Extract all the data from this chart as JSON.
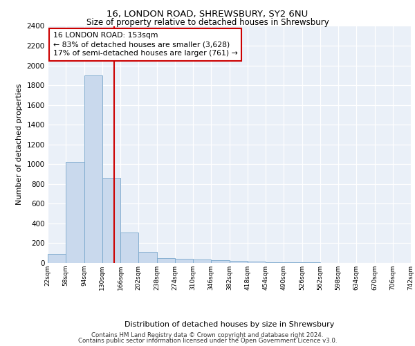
{
  "title1": "16, LONDON ROAD, SHREWSBURY, SY2 6NU",
  "title2": "Size of property relative to detached houses in Shrewsbury",
  "xlabel": "Distribution of detached houses by size in Shrewsbury",
  "ylabel": "Number of detached properties",
  "bin_labels": [
    "22sqm",
    "58sqm",
    "94sqm",
    "130sqm",
    "166sqm",
    "202sqm",
    "238sqm",
    "274sqm",
    "310sqm",
    "346sqm",
    "382sqm",
    "418sqm",
    "454sqm",
    "490sqm",
    "526sqm",
    "562sqm",
    "598sqm",
    "634sqm",
    "670sqm",
    "706sqm",
    "742sqm"
  ],
  "bar_values": [
    90,
    1020,
    1900,
    860,
    310,
    115,
    50,
    45,
    35,
    25,
    20,
    15,
    10,
    8,
    5,
    3,
    2,
    1,
    1,
    0
  ],
  "bar_color": "#c9d9ed",
  "bar_edge_color": "#7aa8cc",
  "ylim": [
    0,
    2400
  ],
  "yticks": [
    0,
    200,
    400,
    600,
    800,
    1000,
    1200,
    1400,
    1600,
    1800,
    2000,
    2200,
    2400
  ],
  "vline_color": "#cc0000",
  "annotation_text": "16 LONDON ROAD: 153sqm\n← 83% of detached houses are smaller (3,628)\n17% of semi-detached houses are larger (761) →",
  "annotation_box_color": "#ffffff",
  "annotation_box_edge": "#cc0000",
  "footer1": "Contains HM Land Registry data © Crown copyright and database right 2024.",
  "footer2": "Contains public sector information licensed under the Open Government Licence v3.0.",
  "plot_bg_color": "#eaf0f8"
}
